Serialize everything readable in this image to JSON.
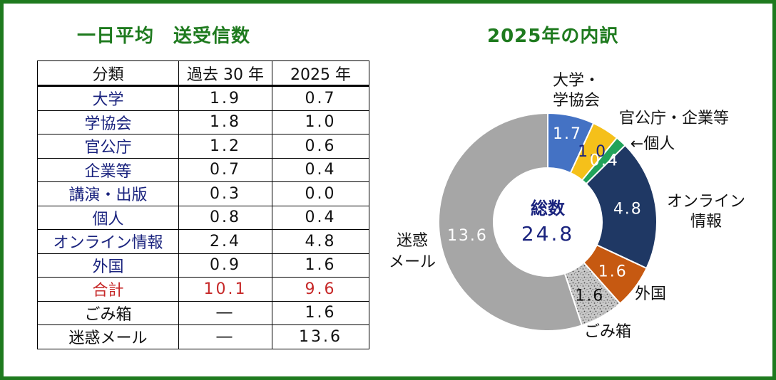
{
  "left_title": "一日平均　送受信数",
  "right_title": "2025年の内訳",
  "table": {
    "headers": [
      "分類",
      "過去 30 年",
      "2025 年"
    ],
    "rows": [
      {
        "label": "大学",
        "past": "1.9",
        "y2025": "0.7",
        "kind": "cat"
      },
      {
        "label": "学協会",
        "past": "1.8",
        "y2025": "1.0",
        "kind": "cat"
      },
      {
        "label": "官公庁",
        "past": "1.2",
        "y2025": "0.6",
        "kind": "cat"
      },
      {
        "label": "企業等",
        "past": "0.7",
        "y2025": "0.4",
        "kind": "cat"
      },
      {
        "label": "講演・出版",
        "past": "0.3",
        "y2025": "0.0",
        "kind": "cat"
      },
      {
        "label": "個人",
        "past": "0.8",
        "y2025": "0.4",
        "kind": "cat"
      },
      {
        "label": "オンライン情報",
        "past": "2.4",
        "y2025": "4.8",
        "kind": "cat"
      },
      {
        "label": "外国",
        "past": "0.9",
        "y2025": "1.6",
        "kind": "cat"
      },
      {
        "label": "合計",
        "past": "10.1",
        "y2025": "9.6",
        "kind": "total"
      },
      {
        "label": "ごみ箱",
        "past": "―",
        "y2025": "1.6",
        "kind": "plain"
      },
      {
        "label": "迷惑メール",
        "past": "―",
        "y2025": "13.6",
        "kind": "plain"
      }
    ]
  },
  "chart_data": {
    "type": "pie",
    "variant": "donut",
    "title": "2025年の内訳",
    "center_label": "総数",
    "center_value": "24.8",
    "slices": [
      {
        "name": "大学・学協会",
        "value": 1.7,
        "value_label": "1.7",
        "color": "#4472c4",
        "outer_label": [
          "大学・",
          "学協会"
        ]
      },
      {
        "name": "官公庁・企業等",
        "value": 1.0,
        "value_label": "1.0",
        "color": "#f5c01a",
        "outer_label": [
          "官公庁・企業等"
        ]
      },
      {
        "name": "個人",
        "value": 0.4,
        "value_label": "0.4",
        "color": "#21a35a",
        "outer_label": [
          "←個人"
        ]
      },
      {
        "name": "オンライン情報",
        "value": 4.8,
        "value_label": "4.8",
        "color": "#1f3864",
        "outer_label": [
          "オンライン",
          "情報"
        ]
      },
      {
        "name": "外国",
        "value": 1.6,
        "value_label": "1.6",
        "color": "#c65911",
        "outer_label": [
          "外国"
        ]
      },
      {
        "name": "ごみ箱",
        "value": 1.6,
        "value_label": "1.6",
        "color": "#bfbfbf",
        "pattern": "speckle",
        "outer_label": [
          "ごみ箱"
        ]
      },
      {
        "name": "迷惑メール",
        "value": 13.6,
        "value_label": "13.6",
        "color": "#a6a6a6",
        "outer_label": [
          "迷惑",
          "メール"
        ]
      }
    ]
  },
  "colors": {
    "title_green": "#1e7a1e",
    "category_blue": "#1a237e",
    "total_red": "#c62828",
    "center_text": "#1a237e"
  }
}
